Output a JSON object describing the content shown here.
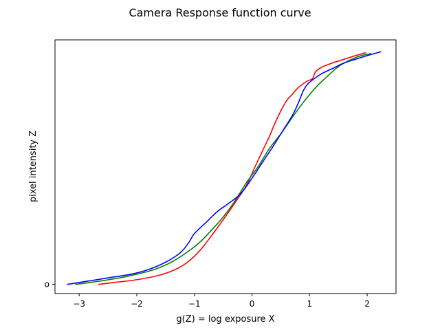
{
  "chart_data": {
    "type": "line",
    "title": "Camera Response function curve",
    "xlabel": "g(Z) = log exposure X",
    "ylabel": "pixel intensity Z",
    "xlim": [
      -3.42,
      2.5
    ],
    "ylim": [
      -10,
      265
    ],
    "x_ticks": [
      -3,
      -2,
      -1,
      0,
      1,
      2
    ],
    "x_tick_labels": [
      "−3",
      "−2",
      "−1",
      "0",
      "1",
      "2"
    ],
    "y_ticks": [
      0
    ],
    "y_tick_labels": [
      "o"
    ],
    "grid": false,
    "legend": "none",
    "series": [
      {
        "color": "#ff0000",
        "points": [
          [
            -2.66,
            0
          ],
          [
            -2.4,
            2
          ],
          [
            -2.0,
            5
          ],
          [
            -1.6,
            10
          ],
          [
            -1.3,
            17
          ],
          [
            -1.1,
            25
          ],
          [
            -0.9,
            37
          ],
          [
            -0.7,
            53
          ],
          [
            -0.5,
            70
          ],
          [
            -0.3,
            88
          ],
          [
            -0.1,
            107
          ],
          [
            0.05,
            127
          ],
          [
            0.2,
            147
          ],
          [
            0.3,
            160
          ],
          [
            0.4,
            175
          ],
          [
            0.5,
            188
          ],
          [
            0.6,
            199
          ],
          [
            0.7,
            206
          ],
          [
            0.8,
            213
          ],
          [
            0.95,
            220
          ],
          [
            1.05,
            223
          ],
          [
            1.1,
            230
          ],
          [
            1.2,
            235
          ],
          [
            1.4,
            240
          ],
          [
            1.6,
            244
          ],
          [
            1.8,
            248
          ],
          [
            1.97,
            251
          ]
        ]
      },
      {
        "color": "#008000",
        "points": [
          [
            -3.06,
            0
          ],
          [
            -2.7,
            3
          ],
          [
            -2.3,
            7
          ],
          [
            -2.0,
            11
          ],
          [
            -1.7,
            16
          ],
          [
            -1.4,
            24
          ],
          [
            -1.1,
            36
          ],
          [
            -0.9,
            46
          ],
          [
            -0.7,
            59
          ],
          [
            -0.5,
            73
          ],
          [
            -0.3,
            90
          ],
          [
            -0.1,
            110
          ],
          [
            0.1,
            127
          ],
          [
            0.3,
            147
          ],
          [
            0.5,
            163
          ],
          [
            0.7,
            181
          ],
          [
            0.9,
            198
          ],
          [
            1.1,
            213
          ],
          [
            1.3,
            225
          ],
          [
            1.5,
            236
          ],
          [
            1.7,
            243
          ],
          [
            1.9,
            248
          ],
          [
            2.06,
            250
          ]
        ]
      },
      {
        "color": "#0000ff",
        "points": [
          [
            -3.2,
            0
          ],
          [
            -2.9,
            3
          ],
          [
            -2.5,
            7
          ],
          [
            -2.1,
            11
          ],
          [
            -1.8,
            16
          ],
          [
            -1.5,
            24
          ],
          [
            -1.25,
            34
          ],
          [
            -1.1,
            45
          ],
          [
            -1.0,
            55
          ],
          [
            -0.8,
            67
          ],
          [
            -0.6,
            79
          ],
          [
            -0.4,
            88
          ],
          [
            -0.2,
            98
          ],
          [
            0.0,
            115
          ],
          [
            0.2,
            134
          ],
          [
            0.35,
            148
          ],
          [
            0.5,
            163
          ],
          [
            0.7,
            183
          ],
          [
            0.8,
            196
          ],
          [
            0.9,
            211
          ],
          [
            1.0,
            219
          ],
          [
            1.2,
            228
          ],
          [
            1.4,
            234
          ],
          [
            1.6,
            240
          ],
          [
            1.8,
            244
          ],
          [
            2.0,
            248
          ],
          [
            2.23,
            252
          ]
        ]
      }
    ]
  }
}
